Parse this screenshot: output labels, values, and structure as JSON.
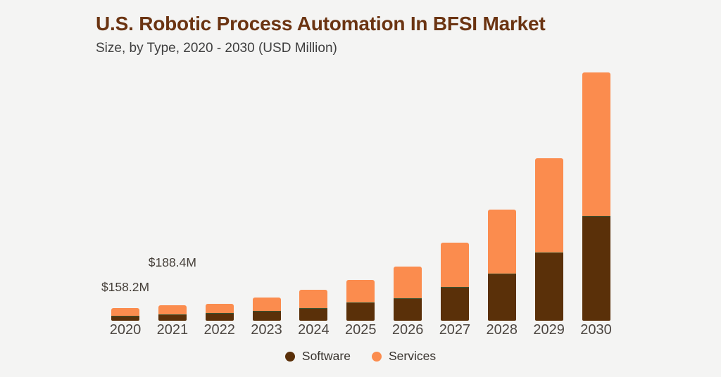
{
  "header": {
    "title": "U.S. Robotic Process Automation In BFSI Market",
    "subtitle": "Size, by Type, 2020 - 2030 (USD Million)"
  },
  "colors": {
    "background": "#f4f4f3",
    "title": "#6b3412",
    "subtitle": "#3f3f3f",
    "software": "#5a3009",
    "services": "#fb8c4e",
    "axis_label": "#4c4641",
    "annotation": "#46403a",
    "legend_text": "#39342f",
    "segment_divider": "rgba(30,115,85,0.55)"
  },
  "chart_data": {
    "type": "bar",
    "stacked": true,
    "title": "U.S. Robotic Process Automation In BFSI Market",
    "subtitle": "Size, by Type, 2020 - 2030 (USD Million)",
    "unit": "USD Million",
    "categories": [
      "2020",
      "2021",
      "2022",
      "2023",
      "2024",
      "2025",
      "2026",
      "2027",
      "2028",
      "2029",
      "2030"
    ],
    "series": [
      {
        "name": "Software",
        "color": "#5a3009",
        "values": [
          62,
          75,
          95,
          119,
          154,
          228,
          281,
          416,
          580,
          840,
          1290
        ]
      },
      {
        "name": "Services",
        "color": "#fb8c4e",
        "values": [
          96.2,
          113.4,
          117,
          171,
          231,
          272,
          390,
          541,
          788,
          1160,
          1766
        ]
      }
    ],
    "totals": [
      158.2,
      188.4,
      212,
      290,
      385,
      500,
      671,
      957,
      1368,
      2000,
      3056
    ],
    "annotations": [
      {
        "text": "$158.2M",
        "category": "2020"
      },
      {
        "text": "$188.4M",
        "category": "2021"
      }
    ],
    "value_axis_visible": false,
    "grid": false,
    "legend_position": "bottom"
  },
  "legend": {
    "items": [
      {
        "label": "Software",
        "color": "#5a3009"
      },
      {
        "label": "Services",
        "color": "#fb8c4e"
      }
    ]
  }
}
